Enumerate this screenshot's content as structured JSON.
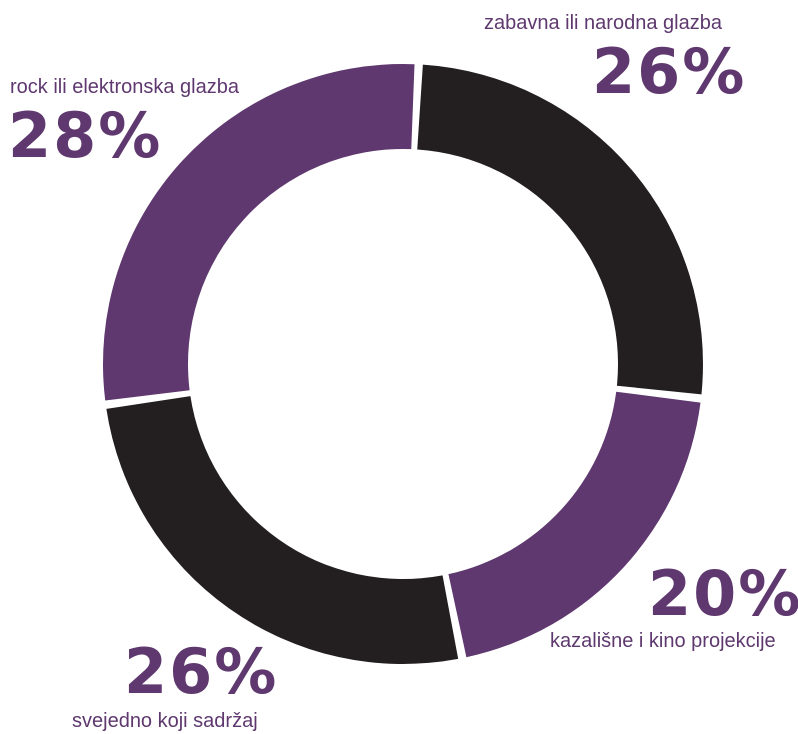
{
  "chart_data": {
    "type": "pie",
    "variant": "donut",
    "categories": [
      "zabavna ili narodna glazba",
      "kazališne i kino projekcije",
      "svejedno koji sadržaj",
      "rock ili elektronska glazba"
    ],
    "values": [
      26,
      20,
      26,
      28
    ],
    "value_labels": [
      "26%",
      "20%",
      "26%",
      "28%"
    ],
    "colors": [
      "#231f20",
      "#5e386e",
      "#231f20",
      "#5e386e"
    ],
    "label_color": "#5e386e",
    "legend": "none"
  }
}
